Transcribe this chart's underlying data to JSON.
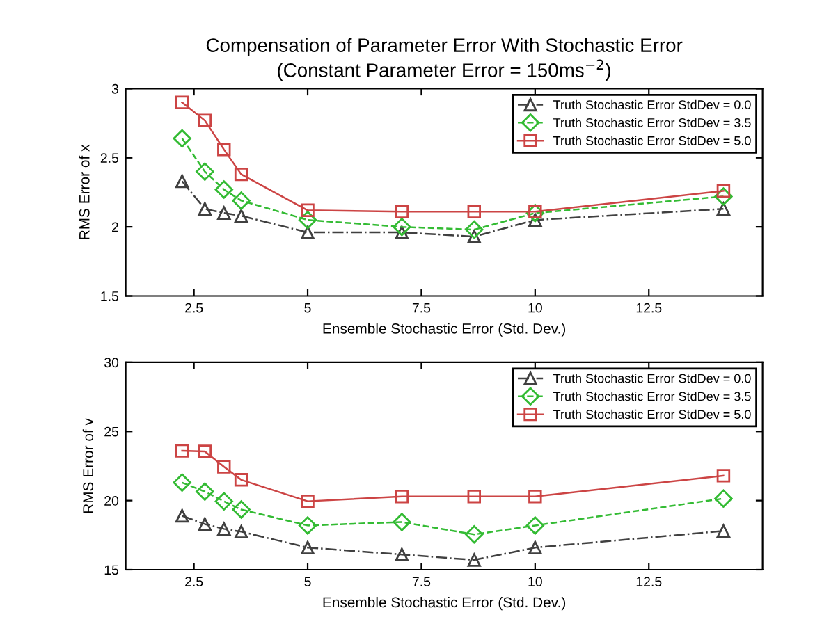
{
  "chart_data": [
    {
      "type": "line",
      "title": "Compensation of Parameter Error With Stochastic Error\n(Constant Parameter Error = 150ms$^{−2}$)",
      "xlabel": "Ensemble Stochastic Error (Std. Dev.)",
      "ylabel": "RMS Error of x",
      "x": [
        2.24,
        2.74,
        3.16,
        3.54,
        5,
        7.07,
        8.66,
        10,
        14.14
      ],
      "xlim": [
        1,
        15
      ],
      "xticks": [
        2.5,
        5,
        7.5,
        10,
        12.5
      ],
      "ylim": [
        1.5,
        3
      ],
      "yticks": [
        1.5,
        2,
        2.5,
        3
      ],
      "grid": false,
      "legend": "top right",
      "series": [
        {
          "name": "Truth Stochastic Error StdDev = 0.0",
          "color": "#404040",
          "marker": "triangle",
          "line_style": "dashdot",
          "values": [
            2.33,
            2.13,
            2.1,
            2.08,
            1.96,
            1.96,
            1.93,
            2.05,
            2.13
          ]
        },
        {
          "name": "Truth Stochastic Error StdDev = 3.5",
          "color": "#33bb33",
          "marker": "diamond",
          "line_style": "dashed",
          "values": [
            2.64,
            2.4,
            2.27,
            2.19,
            2.05,
            2.0,
            1.98,
            2.1,
            2.22
          ]
        },
        {
          "name": "Truth Stochastic Error StdDev = 5.0",
          "color": "#cc4444",
          "marker": "square",
          "line_style": "solid",
          "values": [
            2.9,
            2.77,
            2.56,
            2.38,
            2.12,
            2.11,
            2.11,
            2.11,
            2.26
          ]
        }
      ]
    },
    {
      "type": "line",
      "xlabel": "Ensemble Stochastic Error (Std. Dev.)",
      "ylabel": "RMS Error of v",
      "x": [
        2.24,
        2.74,
        3.16,
        3.54,
        5,
        7.07,
        8.66,
        10,
        14.14
      ],
      "xlim": [
        1,
        15
      ],
      "xticks": [
        2.5,
        5,
        7.5,
        10,
        12.5
      ],
      "ylim": [
        15,
        30
      ],
      "yticks": [
        15,
        20,
        25,
        30
      ],
      "grid": false,
      "legend": "top right",
      "series": [
        {
          "name": "Truth Stochastic Error StdDev = 0.0",
          "color": "#404040",
          "marker": "triangle",
          "line_style": "dashdot",
          "values": [
            18.9,
            18.3,
            17.95,
            17.75,
            16.6,
            16.1,
            15.7,
            16.6,
            17.8
          ]
        },
        {
          "name": "Truth Stochastic Error StdDev = 3.5",
          "color": "#33bb33",
          "marker": "diamond",
          "line_style": "dashed",
          "values": [
            21.3,
            20.65,
            19.95,
            19.35,
            18.2,
            18.45,
            17.55,
            18.2,
            20.15
          ]
        },
        {
          "name": "Truth Stochastic Error StdDev = 5.0",
          "color": "#cc4444",
          "marker": "square",
          "line_style": "solid",
          "values": [
            23.6,
            23.55,
            22.45,
            21.5,
            19.95,
            20.3,
            20.3,
            20.3,
            21.8
          ]
        }
      ]
    }
  ]
}
